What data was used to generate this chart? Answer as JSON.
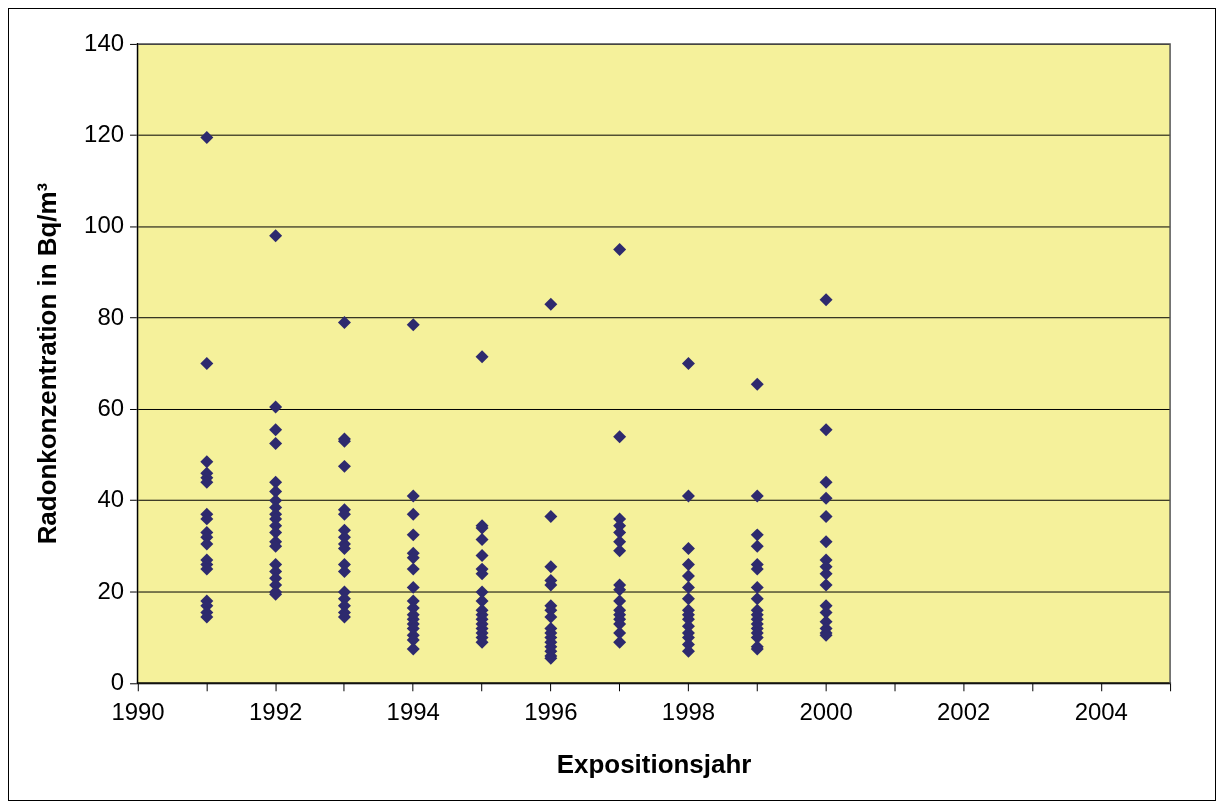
{
  "chart_data": {
    "type": "scatter",
    "xlabel": "Expositionsjahr",
    "ylabel": "Radonkonzentration in Bq/m³",
    "xlim": [
      1990,
      2005
    ],
    "ylim": [
      0,
      140
    ],
    "xticks": [
      1990,
      {
        "value": 1991,
        "label": null
      },
      1992,
      {
        "value": 1993,
        "label": null
      },
      1994,
      {
        "value": 1995,
        "label": null
      },
      1996,
      {
        "value": 1997,
        "label": null
      },
      1998,
      {
        "value": 1999,
        "label": null
      },
      2000,
      {
        "value": 2001,
        "label": null
      },
      2002,
      {
        "value": 2003,
        "label": null
      },
      2004,
      {
        "value": 2005,
        "label": null
      }
    ],
    "yticks": [
      0,
      20,
      40,
      60,
      80,
      100,
      120,
      140
    ],
    "grid": "y",
    "marker": "diamond",
    "legend": false,
    "series": [
      {
        "color": "#2e2a6e",
        "x": [
          1991,
          1991,
          1991,
          1991,
          1991,
          1991,
          1991,
          1991,
          1991,
          1991,
          1991,
          1991,
          1991,
          1991,
          1991,
          1991,
          1991,
          1991,
          1992,
          1992,
          1992,
          1992,
          1992,
          1992,
          1992,
          1992,
          1992,
          1992,
          1992,
          1992,
          1992,
          1992,
          1992,
          1992,
          1992,
          1992,
          1992,
          1992,
          1993,
          1993,
          1993,
          1993,
          1993,
          1993,
          1993,
          1993,
          1993,
          1993,
          1993,
          1993,
          1993,
          1993,
          1993,
          1993,
          1993,
          1994,
          1994,
          1994,
          1994,
          1994,
          1994,
          1994,
          1994,
          1994,
          1994,
          1994,
          1994,
          1994,
          1994,
          1994,
          1994,
          1994,
          1995,
          1995,
          1995,
          1995,
          1995,
          1995,
          1995,
          1995,
          1995,
          1995,
          1995,
          1995,
          1995,
          1995,
          1995,
          1995,
          1995,
          1996,
          1996,
          1996,
          1996,
          1996,
          1996,
          1996,
          1996,
          1996,
          1996,
          1996,
          1996,
          1996,
          1996,
          1996,
          1996,
          1997,
          1997,
          1997,
          1997,
          1997,
          1997,
          1997,
          1997,
          1997,
          1997,
          1997,
          1997,
          1997,
          1997,
          1997,
          1997,
          1998,
          1998,
          1998,
          1998,
          1998,
          1998,
          1998,
          1998,
          1998,
          1998,
          1998,
          1998,
          1998,
          1998,
          1998,
          1999,
          1999,
          1999,
          1999,
          1999,
          1999,
          1999,
          1999,
          1999,
          1999,
          1999,
          1999,
          1999,
          1999,
          1999,
          1999,
          1999,
          2000,
          2000,
          2000,
          2000,
          2000,
          2000,
          2000,
          2000,
          2000,
          2000,
          2000,
          2000,
          2000,
          2000,
          2000,
          2000
        ],
        "values": [
          119.5,
          70,
          48.5,
          46,
          45,
          44,
          37,
          36,
          33,
          32,
          30.5,
          27,
          26,
          25,
          18,
          17,
          15.5,
          14.5,
          98,
          60.5,
          55.5,
          52.5,
          44,
          42,
          40,
          38.5,
          37,
          36,
          34.5,
          33,
          31,
          30,
          26,
          24.5,
          23,
          21.5,
          20,
          19.5,
          79,
          53.5,
          53,
          47.5,
          38,
          37,
          33.5,
          32,
          30.5,
          29.5,
          26,
          24.5,
          20,
          18.5,
          17,
          15.5,
          14.5,
          78.5,
          41,
          37,
          32.5,
          28.5,
          27.5,
          25,
          21,
          18,
          16.5,
          15,
          14,
          13,
          12,
          10.5,
          9.5,
          7.5,
          71.5,
          34.5,
          34,
          31.5,
          28,
          25,
          24,
          20,
          18,
          16,
          15,
          14,
          13,
          12,
          11,
          10,
          9,
          83,
          36.5,
          25.5,
          22.5,
          21.5,
          17,
          16,
          14.5,
          12,
          11,
          10,
          9,
          8,
          7,
          6,
          5.5,
          95,
          54,
          36,
          34.5,
          33,
          31,
          29,
          21.5,
          20.5,
          18,
          16,
          15,
          14,
          13,
          11,
          9,
          70,
          41,
          29.5,
          26,
          23.5,
          21,
          18.5,
          16,
          15,
          14,
          12.5,
          11,
          10,
          8.5,
          7,
          65.5,
          41,
          32.5,
          30,
          26,
          25,
          21,
          18.5,
          16,
          15,
          14,
          13,
          12,
          11,
          10,
          8,
          7.5,
          84,
          55.5,
          44,
          40.5,
          36.5,
          31,
          27,
          25.5,
          24,
          21.5,
          17,
          15.5,
          13.5,
          12,
          11,
          10.5
        ]
      }
    ]
  }
}
